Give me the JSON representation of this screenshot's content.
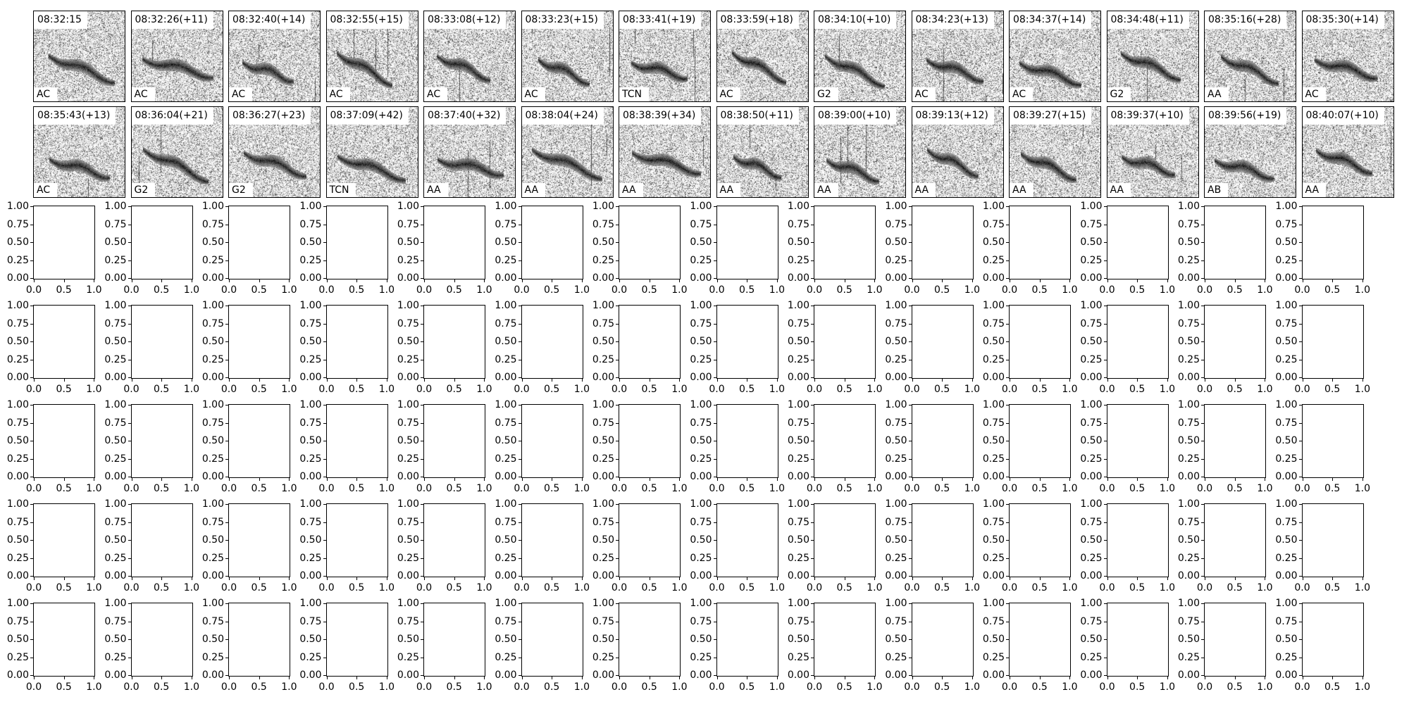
{
  "chart_data": {
    "type": "heatmap",
    "colormap": "gray_r",
    "spectrogram_panels": [
      {
        "timestamp": "08:32:15",
        "label": "AC"
      },
      {
        "timestamp": "08:32:26(+11)",
        "label": "AC"
      },
      {
        "timestamp": "08:32:40(+14)",
        "label": "AC"
      },
      {
        "timestamp": "08:32:55(+15)",
        "label": "AC"
      },
      {
        "timestamp": "08:33:08(+12)",
        "label": "AC"
      },
      {
        "timestamp": "08:33:23(+15)",
        "label": "AC"
      },
      {
        "timestamp": "08:33:41(+19)",
        "label": "TCN"
      },
      {
        "timestamp": "08:33:59(+18)",
        "label": "AC"
      },
      {
        "timestamp": "08:34:10(+10)",
        "label": "G2"
      },
      {
        "timestamp": "08:34:23(+13)",
        "label": "AC"
      },
      {
        "timestamp": "08:34:37(+14)",
        "label": "AC"
      },
      {
        "timestamp": "08:34:48(+11)",
        "label": "G2"
      },
      {
        "timestamp": "08:35:16(+28)",
        "label": "AA"
      },
      {
        "timestamp": "08:35:30(+14)",
        "label": "AC"
      },
      {
        "timestamp": "08:35:43(+13)",
        "label": "AC"
      },
      {
        "timestamp": "08:36:04(+21)",
        "label": "G2"
      },
      {
        "timestamp": "08:36:27(+23)",
        "label": "G2"
      },
      {
        "timestamp": "08:37:09(+42)",
        "label": "TCN"
      },
      {
        "timestamp": "08:37:40(+32)",
        "label": "AA"
      },
      {
        "timestamp": "08:38:04(+24)",
        "label": "AA"
      },
      {
        "timestamp": "08:38:39(+34)",
        "label": "AA"
      },
      {
        "timestamp": "08:38:50(+11)",
        "label": "AA"
      },
      {
        "timestamp": "08:39:00(+10)",
        "label": "AA"
      },
      {
        "timestamp": "08:39:13(+12)",
        "label": "AA"
      },
      {
        "timestamp": "08:39:27(+15)",
        "label": "AA"
      },
      {
        "timestamp": "08:39:37(+10)",
        "label": "AA"
      },
      {
        "timestamp": "08:39:56(+19)",
        "label": "AB"
      },
      {
        "timestamp": "08:40:07(+10)",
        "label": "AA"
      }
    ],
    "grid": {
      "cols": 14,
      "spectrogram_rows": 2,
      "empty_rows": 5
    },
    "empty_axes": {
      "xlim": [
        0,
        1
      ],
      "ylim": [
        0,
        1
      ],
      "xticks": [
        "0.0",
        "0.5",
        "1.0"
      ],
      "yticks": [
        "0.00",
        "0.25",
        "0.50",
        "0.75",
        "1.00"
      ]
    }
  }
}
